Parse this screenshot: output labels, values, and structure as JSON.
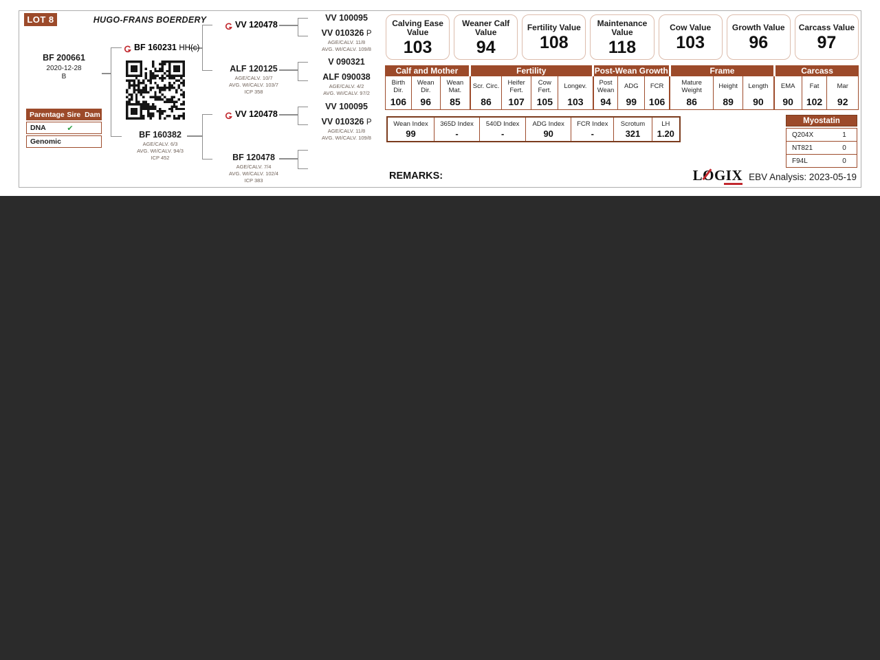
{
  "document": {
    "lot_label": "LOT 8",
    "farm_name": "HUGO-FRANS BOERDERY",
    "remarks_label": "REMARKS:",
    "ebv_analysis": "EBV Analysis: 2023-05-19",
    "logo_l": "L",
    "logo_o": "O",
    "logo_gix": "GIX"
  },
  "colors": {
    "accent_brown": "#9c4a2a",
    "dark_border": "#7a3a1c",
    "box_border": "#dcbcac",
    "logo_red": "#c1272d",
    "check_green": "#2f9e41",
    "background": "#2b2b2b"
  },
  "pedigree": {
    "animal": {
      "id": "BF 200661",
      "birth_date": "2020-12-28",
      "code": "B"
    },
    "sire": {
      "id": "BF 160231",
      "suffix": "HH(c)"
    },
    "dam": {
      "id": "BF 160382",
      "lines": [
        "AGE/CALV. 6/3",
        "AVG. WI/CALV. 94/3",
        "ICP 452"
      ]
    },
    "sire_sire": {
      "id": "VV 120478"
    },
    "sire_dam": {
      "id": "ALF 120125",
      "lines": [
        "AGE/CALV. 10/7",
        "AVG. WI/CALV. 103/7",
        "ICP 358"
      ]
    },
    "dam_sire": {
      "id": "VV 120478"
    },
    "dam_dam": {
      "id": "BF 120478",
      "lines": [
        "AGE/CALV. 7/4",
        "AVG. WI/CALV. 102/4",
        "ICP 383"
      ]
    },
    "ss_sire": {
      "id": "VV 100095"
    },
    "ss_dam": {
      "id": "VV 010326",
      "suffix": "P",
      "lines": [
        "AGE/CALV. 11/8",
        "AVG. WI/CALV. 109/8"
      ]
    },
    "sd_sire": {
      "id": "V 090321"
    },
    "sd_dam": {
      "id": "ALF 090038",
      "lines": [
        "AGE/CALV. 4/2",
        "AVG. WI/CALV. 97/2"
      ]
    },
    "ds_sire": {
      "id": "VV 100095"
    },
    "ds_dam": {
      "id": "VV 010326",
      "suffix": "P",
      "lines": [
        "AGE/CALV. 11/8",
        "AVG. WI/CALV. 109/8"
      ]
    }
  },
  "parentage": {
    "header_label": "Parentage",
    "col_sire": "Sire",
    "col_dam": "Dam",
    "rows": [
      {
        "label": "DNA",
        "sire": "✔",
        "dam": ""
      },
      {
        "label": "Genomic",
        "sire": "",
        "dam": ""
      }
    ]
  },
  "value_boxes": [
    {
      "label": "Calving Ease Value",
      "value": "103"
    },
    {
      "label": "Weaner Calf Value",
      "value": "94"
    },
    {
      "label": "Fertility Value",
      "value": "108"
    },
    {
      "label": "Maintenance Value",
      "value": "118"
    },
    {
      "label": "Cow Value",
      "value": "103"
    },
    {
      "label": "Growth Value",
      "value": "96"
    },
    {
      "label": "Carcass Value",
      "value": "97"
    }
  ],
  "ebv_table": {
    "groups": [
      {
        "title": "Calf and Mother",
        "cells": [
          {
            "label": "Birth Dir.",
            "value": "106"
          },
          {
            "label": "Wean Dir.",
            "value": "96"
          },
          {
            "label": "Wean Mat.",
            "value": "85"
          }
        ]
      },
      {
        "title": "Fertility",
        "cells": [
          {
            "label": "Scr. Circ.",
            "value": "86"
          },
          {
            "label": "Heifer Fert.",
            "value": "107"
          },
          {
            "label": "Cow Fert.",
            "value": "105"
          },
          {
            "label": "Longev.",
            "value": "103"
          }
        ]
      },
      {
        "title": "Post-Wean Growth",
        "cells": [
          {
            "label": "Post Wean",
            "value": "94"
          },
          {
            "label": "ADG",
            "value": "99"
          },
          {
            "label": "FCR",
            "value": "106"
          }
        ]
      },
      {
        "title": "Frame",
        "cells": [
          {
            "label": "Mature Weight",
            "value": "86"
          },
          {
            "label": "Height",
            "value": "89"
          },
          {
            "label": "Length",
            "value": "90"
          }
        ]
      },
      {
        "title": "Carcass",
        "cells": [
          {
            "label": "EMA",
            "value": "90"
          },
          {
            "label": "Fat",
            "value": "102"
          },
          {
            "label": "Mar",
            "value": "92"
          }
        ]
      }
    ]
  },
  "index_table": {
    "cells": [
      {
        "label": "Wean Index",
        "value": "99"
      },
      {
        "label": "365D Index",
        "value": "-"
      },
      {
        "label": "540D Index",
        "value": "-"
      },
      {
        "label": "ADG Index",
        "value": "90"
      },
      {
        "label": "FCR Index",
        "value": "-"
      },
      {
        "label": "Scrotum",
        "value": "321"
      },
      {
        "label": "LH",
        "value": "1.20"
      }
    ]
  },
  "myostatin": {
    "title": "Myostatin",
    "rows": [
      {
        "label": "Q204X",
        "value": "1"
      },
      {
        "label": "NT821",
        "value": "0"
      },
      {
        "label": "F94L",
        "value": "0"
      }
    ]
  }
}
